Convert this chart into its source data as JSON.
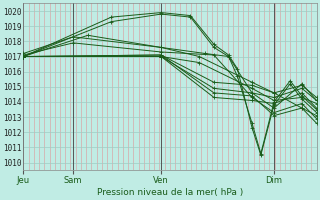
{
  "title": "Pression niveau de la mer( hPa )",
  "bg_color": "#c0ece4",
  "grid_color_v": "#d8a8a8",
  "grid_color_h": "#a0ccc4",
  "line_color": "#1a5c1a",
  "ylim": [
    1009.5,
    1020.5
  ],
  "yticks": [
    1010,
    1011,
    1012,
    1013,
    1014,
    1015,
    1016,
    1017,
    1018,
    1019,
    1020
  ],
  "xtick_labels": [
    "Jeu",
    "Sam",
    "Ven",
    "Dim"
  ],
  "xtick_positions": [
    0.0,
    0.17,
    0.47,
    0.855
  ],
  "n_vgrid": 56,
  "lines": [
    [
      0.0,
      1017.0,
      0.3,
      1019.6,
      0.47,
      1019.9,
      0.57,
      1019.7,
      0.65,
      1017.8,
      0.7,
      1017.1,
      0.73,
      1016.2,
      0.78,
      1012.3,
      0.81,
      1010.5,
      0.855,
      1013.8,
      0.91,
      1015.2,
      0.95,
      1014.2,
      1.0,
      1013.3
    ],
    [
      0.0,
      1017.0,
      0.3,
      1019.3,
      0.47,
      1019.8,
      0.57,
      1019.6,
      0.65,
      1017.6,
      0.7,
      1017.0,
      0.73,
      1015.7,
      0.78,
      1012.6,
      0.81,
      1010.6,
      0.855,
      1014.0,
      0.91,
      1015.4,
      0.95,
      1014.4,
      1.0,
      1013.5
    ],
    [
      0.0,
      1017.0,
      0.22,
      1018.4,
      0.47,
      1017.6,
      0.62,
      1017.2,
      0.7,
      1017.0,
      0.78,
      1014.6,
      0.855,
      1013.6,
      0.95,
      1015.2,
      1.0,
      1014.1
    ],
    [
      0.0,
      1017.1,
      0.17,
      1017.9,
      0.47,
      1017.3,
      0.65,
      1017.1,
      0.78,
      1014.3,
      0.855,
      1013.3,
      0.95,
      1013.9,
      1.0,
      1012.9
    ],
    [
      0.0,
      1017.0,
      0.47,
      1017.1,
      0.65,
      1014.6,
      0.78,
      1014.4,
      0.855,
      1013.1,
      0.95,
      1013.6,
      1.0,
      1012.6
    ],
    [
      0.0,
      1017.0,
      0.47,
      1017.0,
      0.65,
      1014.3,
      0.78,
      1014.1,
      0.855,
      1013.9,
      0.95,
      1014.6,
      1.0,
      1013.6
    ],
    [
      0.0,
      1017.0,
      0.47,
      1017.0,
      0.65,
      1014.9,
      0.78,
      1014.6,
      0.855,
      1014.3,
      0.95,
      1014.9,
      1.0,
      1014.1
    ],
    [
      0.0,
      1017.0,
      0.47,
      1017.1,
      0.65,
      1015.3,
      0.78,
      1015.1,
      0.855,
      1014.6,
      0.95,
      1013.6,
      1.0,
      1013.1
    ],
    [
      0.0,
      1017.0,
      0.47,
      1017.0,
      0.6,
      1016.6,
      0.78,
      1014.9,
      0.855,
      1014.1,
      0.95,
      1014.3,
      1.0,
      1013.9
    ],
    [
      0.0,
      1017.2,
      0.17,
      1018.3,
      0.47,
      1017.6,
      0.6,
      1017.0,
      0.78,
      1015.3,
      0.855,
      1014.6,
      0.95,
      1015.1,
      1.0,
      1014.3
    ]
  ]
}
